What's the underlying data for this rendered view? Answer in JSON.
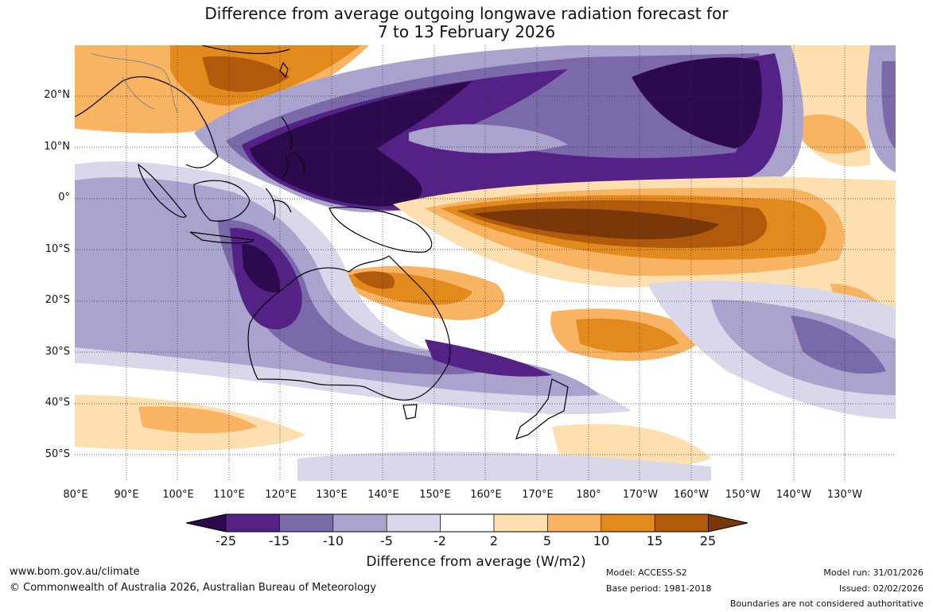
{
  "title_line1": "Difference from average outgoing longwave radiation forecast for",
  "title_line2": "7 to 13 February 2026",
  "lat_labels": [
    "20°N",
    "10°N",
    "0°",
    "10°S",
    "20°S",
    "30°S",
    "40°S",
    "50°S"
  ],
  "lon_labels": [
    "80°E",
    "90°E",
    "100°E",
    "110°E",
    "120°E",
    "130°E",
    "140°E",
    "150°E",
    "160°E",
    "170°E",
    "180°",
    "170°W",
    "160°W",
    "150°W",
    "140°W",
    "130°W"
  ],
  "colorbar": {
    "ticks": [
      "-25",
      "-15",
      "-10",
      "-5",
      "-2",
      "2",
      "5",
      "10",
      "15",
      "25"
    ],
    "colors": [
      "#2d0a4e",
      "#542286",
      "#7b6aaa",
      "#a9a3cd",
      "#d9d8ea",
      "#ffffff",
      "#fddfb0",
      "#f8b462",
      "#e38a1e",
      "#b25a0b",
      "#7a3708"
    ],
    "label": "Difference from average (W/m2)"
  },
  "footer": {
    "website": "www.bom.gov.au/climate",
    "copyright": "© Commonwealth of Australia 2026, Australian Bureau of Meteorology",
    "model": "Model: ACCESS-S2",
    "base_period": "Base period: 1981-2018",
    "model_run": "Model run: 31/01/2026",
    "issued": "Issued: 02/02/2026",
    "disclaimer": "Boundaries are not considered authoritative"
  }
}
